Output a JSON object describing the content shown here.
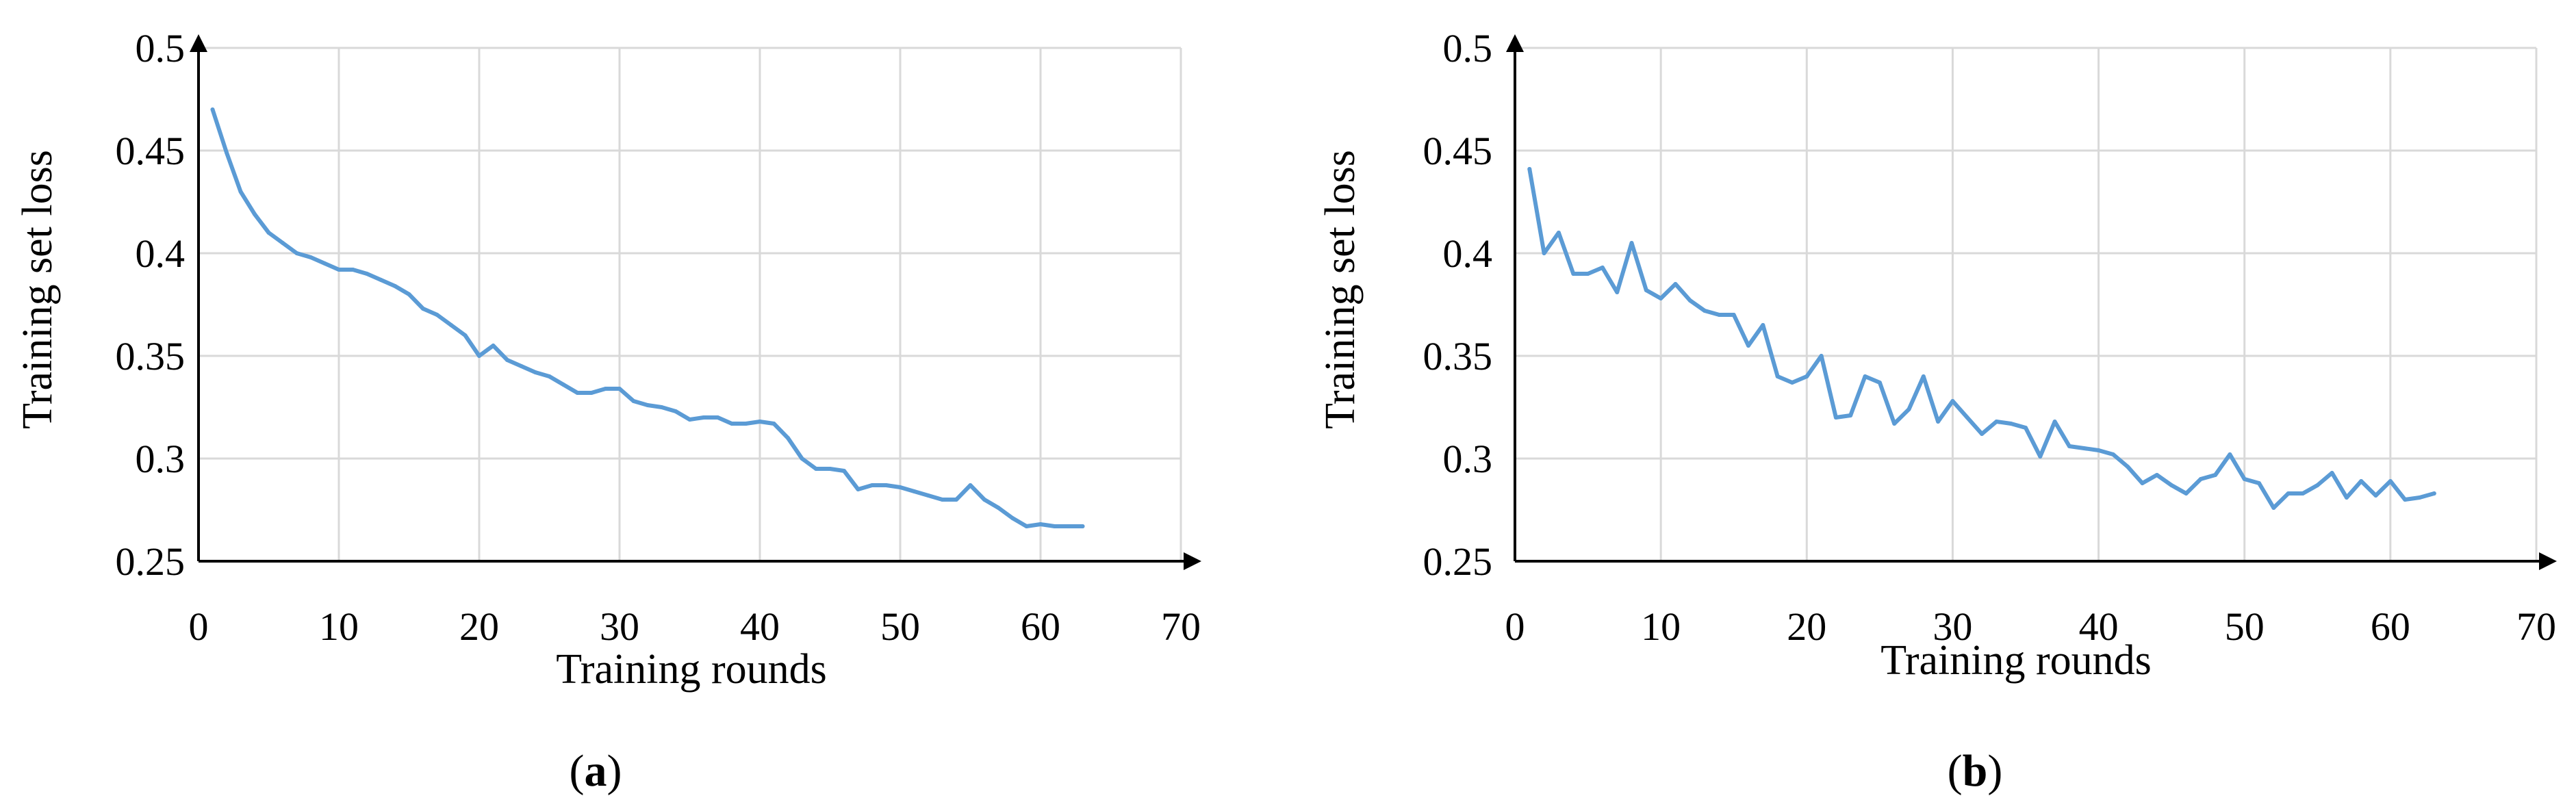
{
  "colors": {
    "series": "#5b9bd5",
    "grid": "#d9d9d9",
    "axis": "#000000"
  },
  "chart_data": [
    {
      "type": "line",
      "panel_label": "a",
      "xlabel": "Training rounds",
      "ylabel": "Training set loss",
      "xlim": [
        0,
        70
      ],
      "ylim": [
        0.25,
        0.5
      ],
      "xticks": [
        "0",
        "10",
        "20",
        "30",
        "40",
        "50",
        "60",
        "70"
      ],
      "yticks": [
        "0.25",
        "0.3",
        "0.35",
        "0.4",
        "0.45",
        "0.5"
      ],
      "grid": true,
      "series": [
        {
          "x": [
            1,
            2,
            3,
            4,
            5,
            6,
            7,
            8,
            9,
            10,
            11,
            12,
            13,
            14,
            15,
            16,
            17,
            18,
            19,
            20,
            21,
            22,
            23,
            24,
            25,
            26,
            27,
            28,
            29,
            30,
            31,
            32,
            33,
            34,
            35,
            36,
            37,
            38,
            39,
            40,
            41,
            42,
            43,
            44,
            45,
            46,
            47,
            48,
            49,
            50,
            51,
            52,
            53,
            54,
            55,
            56,
            57,
            58,
            59,
            60,
            61,
            62,
            63
          ],
          "y": [
            0.47,
            0.449,
            0.43,
            0.419,
            0.41,
            0.405,
            0.4,
            0.398,
            0.395,
            0.392,
            0.392,
            0.39,
            0.387,
            0.384,
            0.38,
            0.373,
            0.37,
            0.365,
            0.36,
            0.35,
            0.355,
            0.348,
            0.345,
            0.342,
            0.34,
            0.336,
            0.332,
            0.332,
            0.334,
            0.334,
            0.328,
            0.326,
            0.325,
            0.323,
            0.319,
            0.32,
            0.32,
            0.317,
            0.317,
            0.318,
            0.317,
            0.31,
            0.3,
            0.295,
            0.295,
            0.294,
            0.285,
            0.287,
            0.287,
            0.286,
            0.284,
            0.282,
            0.28,
            0.28,
            0.287,
            0.28,
            0.276,
            0.271,
            0.267,
            0.268,
            0.267,
            0.267,
            0.267
          ]
        }
      ]
    },
    {
      "type": "line",
      "panel_label": "b",
      "xlabel": "Training rounds",
      "ylabel": "Training set loss",
      "xlim": [
        0,
        70
      ],
      "ylim": [
        0.25,
        0.5
      ],
      "xticks": [
        "0",
        "10",
        "20",
        "30",
        "40",
        "50",
        "60",
        "70"
      ],
      "yticks": [
        "0.25",
        "0.3",
        "0.35",
        "0.4",
        "0.45",
        "0.5"
      ],
      "grid": true,
      "series": [
        {
          "x": [
            1,
            2,
            3,
            4,
            5,
            6,
            7,
            8,
            9,
            10,
            11,
            12,
            13,
            14,
            15,
            16,
            17,
            18,
            19,
            20,
            21,
            22,
            23,
            24,
            25,
            26,
            27,
            28,
            29,
            30,
            31,
            32,
            33,
            34,
            35,
            36,
            37,
            38,
            39,
            40,
            41,
            42,
            43,
            44,
            45,
            46,
            47,
            48,
            49,
            50,
            51,
            52,
            53,
            54,
            55,
            56,
            57,
            58,
            59,
            60,
            61,
            62,
            63
          ],
          "y": [
            0.441,
            0.4,
            0.41,
            0.39,
            0.39,
            0.393,
            0.381,
            0.405,
            0.382,
            0.378,
            0.385,
            0.377,
            0.372,
            0.37,
            0.37,
            0.355,
            0.365,
            0.34,
            0.337,
            0.34,
            0.35,
            0.32,
            0.321,
            0.34,
            0.337,
            0.317,
            0.324,
            0.34,
            0.318,
            0.328,
            0.32,
            0.312,
            0.318,
            0.317,
            0.315,
            0.301,
            0.318,
            0.306,
            0.305,
            0.304,
            0.302,
            0.296,
            0.288,
            0.292,
            0.287,
            0.283,
            0.29,
            0.292,
            0.302,
            0.29,
            0.288,
            0.276,
            0.283,
            0.283,
            0.287,
            0.293,
            0.281,
            0.289,
            0.282,
            0.289,
            0.28,
            0.281,
            0.283
          ]
        }
      ]
    }
  ]
}
